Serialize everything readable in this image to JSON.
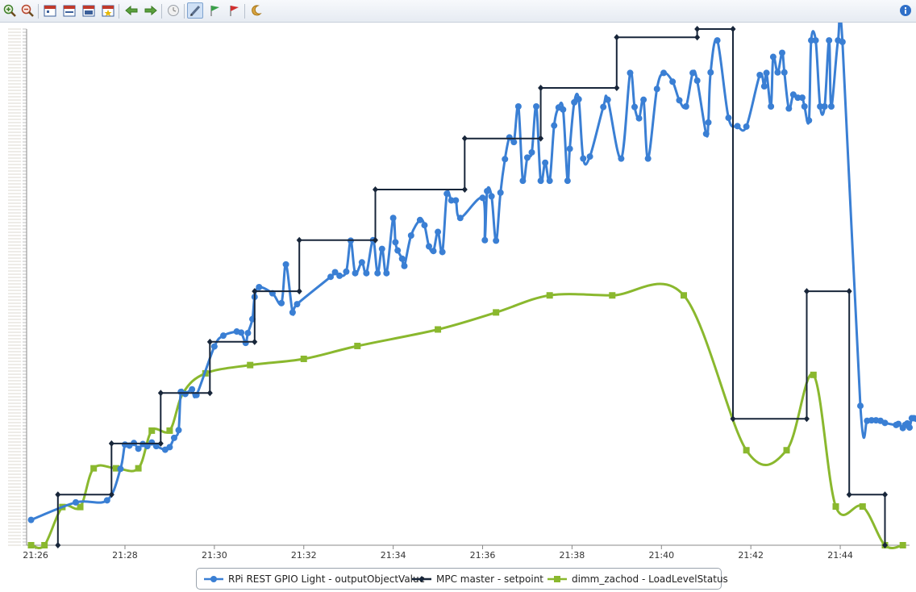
{
  "toolbar": {
    "icons": [
      "zoom-in-icon",
      "zoom-out-icon",
      "calendar-day-icon",
      "calendar-week-icon",
      "calendar-month-icon",
      "calendar-star-icon",
      "arrow-left-icon",
      "arrow-right-icon",
      "clock-icon",
      "edit-pen-icon",
      "flag-green-icon",
      "flag-red-icon",
      "moon-icon",
      "info-icon"
    ],
    "active": "edit-pen-icon"
  },
  "chart_data": {
    "type": "line",
    "title": "",
    "xlabel": "",
    "ylabel": "",
    "x_ticks": [
      "21:26",
      "21:28",
      "21:30",
      "21:32",
      "21:34",
      "21:36",
      "21:38",
      "21:40",
      "21:42",
      "21:44"
    ],
    "xlim": [
      25.8,
      45.55
    ],
    "ylim": [
      0,
      1
    ],
    "grid": false,
    "legend": "bottom",
    "x_unit": "minutes past 21:00",
    "series": [
      {
        "name": "RPi REST GPIO Light - outputObjectValue",
        "color": "#3a7fd4",
        "marker": "circle",
        "smooth": true,
        "points": [
          [
            25.9,
            0.049
          ],
          [
            26.9,
            0.083
          ],
          [
            27.6,
            0.087
          ],
          [
            27.9,
            0.148
          ],
          [
            28.0,
            0.195
          ],
          [
            28.1,
            0.193
          ],
          [
            28.2,
            0.198
          ],
          [
            28.3,
            0.187
          ],
          [
            28.4,
            0.196
          ],
          [
            28.5,
            0.192
          ],
          [
            28.6,
            0.199
          ],
          [
            28.7,
            0.192
          ],
          [
            28.9,
            0.185
          ],
          [
            29.0,
            0.19
          ],
          [
            29.1,
            0.208
          ],
          [
            29.2,
            0.223
          ],
          [
            29.25,
            0.297
          ],
          [
            29.35,
            0.293
          ],
          [
            29.5,
            0.302
          ],
          [
            29.6,
            0.291
          ],
          [
            30.0,
            0.385
          ],
          [
            30.2,
            0.406
          ],
          [
            30.5,
            0.414
          ],
          [
            30.6,
            0.412
          ],
          [
            30.7,
            0.392
          ],
          [
            30.75,
            0.411
          ],
          [
            30.85,
            0.438
          ],
          [
            30.9,
            0.481
          ],
          [
            31.0,
            0.5
          ],
          [
            31.3,
            0.488
          ],
          [
            31.5,
            0.469
          ],
          [
            31.6,
            0.544
          ],
          [
            31.75,
            0.451
          ],
          [
            31.85,
            0.467
          ],
          [
            32.6,
            0.52
          ],
          [
            32.7,
            0.529
          ],
          [
            32.8,
            0.522
          ],
          [
            32.95,
            0.53
          ],
          [
            33.05,
            0.59
          ],
          [
            33.15,
            0.527
          ],
          [
            33.3,
            0.548
          ],
          [
            33.4,
            0.527
          ],
          [
            33.55,
            0.591
          ],
          [
            33.65,
            0.527
          ],
          [
            33.75,
            0.574
          ],
          [
            33.85,
            0.527
          ],
          [
            34.0,
            0.634
          ],
          [
            34.05,
            0.587
          ],
          [
            34.1,
            0.571
          ],
          [
            34.2,
            0.555
          ],
          [
            34.25,
            0.541
          ],
          [
            34.4,
            0.6
          ],
          [
            34.6,
            0.63
          ],
          [
            34.7,
            0.62
          ],
          [
            34.8,
            0.579
          ],
          [
            34.9,
            0.57
          ],
          [
            35.0,
            0.607
          ],
          [
            35.1,
            0.568
          ],
          [
            35.2,
            0.681
          ],
          [
            35.3,
            0.668
          ],
          [
            35.4,
            0.668
          ],
          [
            35.5,
            0.634
          ],
          [
            36.0,
            0.673
          ],
          [
            36.05,
            0.591
          ],
          [
            36.1,
            0.686
          ],
          [
            36.2,
            0.676
          ],
          [
            36.3,
            0.59
          ],
          [
            36.4,
            0.683
          ],
          [
            36.5,
            0.748
          ],
          [
            36.6,
            0.79
          ],
          [
            36.7,
            0.781
          ],
          [
            36.8,
            0.85
          ],
          [
            36.9,
            0.706
          ],
          [
            37.0,
            0.751
          ],
          [
            37.1,
            0.761
          ],
          [
            37.2,
            0.85
          ],
          [
            37.3,
            0.706
          ],
          [
            37.4,
            0.741
          ],
          [
            37.5,
            0.706
          ],
          [
            37.6,
            0.813
          ],
          [
            37.7,
            0.848
          ],
          [
            37.8,
            0.844
          ],
          [
            37.9,
            0.706
          ],
          [
            37.95,
            0.768
          ],
          [
            38.05,
            0.858
          ],
          [
            38.15,
            0.864
          ],
          [
            38.25,
            0.749
          ],
          [
            38.4,
            0.753
          ],
          [
            38.7,
            0.849
          ],
          [
            38.8,
            0.863
          ],
          [
            39.1,
            0.749
          ],
          [
            39.3,
            0.915
          ],
          [
            39.4,
            0.849
          ],
          [
            39.5,
            0.827
          ],
          [
            39.6,
            0.863
          ],
          [
            39.7,
            0.749
          ],
          [
            39.9,
            0.884
          ],
          [
            40.05,
            0.915
          ],
          [
            40.25,
            0.898
          ],
          [
            40.4,
            0.862
          ],
          [
            40.55,
            0.85
          ],
          [
            40.7,
            0.915
          ],
          [
            40.8,
            0.9
          ],
          [
            41.0,
            0.797
          ],
          [
            41.05,
            0.819
          ],
          [
            41.1,
            0.916
          ],
          [
            41.25,
            0.978
          ],
          [
            41.5,
            0.828
          ],
          [
            41.7,
            0.812
          ],
          [
            41.9,
            0.811
          ],
          [
            42.2,
            0.911
          ],
          [
            42.3,
            0.889
          ],
          [
            42.35,
            0.915
          ],
          [
            42.45,
            0.85
          ],
          [
            42.5,
            0.946
          ],
          [
            42.6,
            0.916
          ],
          [
            42.7,
            0.954
          ],
          [
            42.75,
            0.916
          ],
          [
            42.85,
            0.846
          ],
          [
            42.95,
            0.873
          ],
          [
            43.05,
            0.867
          ],
          [
            43.15,
            0.867
          ],
          [
            43.2,
            0.85
          ],
          [
            43.3,
            0.823
          ],
          [
            43.35,
            0.978
          ],
          [
            43.45,
            0.978
          ],
          [
            43.55,
            0.85
          ],
          [
            43.65,
            0.85
          ],
          [
            43.75,
            0.978
          ],
          [
            43.8,
            0.85
          ],
          [
            43.95,
            0.978
          ],
          [
            44.05,
            0.975
          ],
          [
            44.45,
            0.27
          ],
          [
            44.6,
            0.241
          ],
          [
            44.7,
            0.242
          ],
          [
            44.8,
            0.242
          ],
          [
            44.9,
            0.241
          ],
          [
            45.0,
            0.237
          ],
          [
            45.25,
            0.233
          ],
          [
            45.3,
            0.235
          ],
          [
            45.4,
            0.227
          ],
          [
            45.45,
            0.233
          ],
          [
            45.5,
            0.236
          ],
          [
            45.55,
            0.228
          ],
          [
            45.6,
            0.246
          ],
          [
            45.65,
            0.246
          ],
          [
            45.7,
            0.245
          ],
          [
            45.75,
            0.244
          ],
          [
            45.8,
            0.24
          ],
          [
            45.9,
            0.237
          ],
          [
            45.95,
            0.25
          ],
          [
            46.0,
            0.253
          ],
          [
            46.05,
            0.254
          ],
          [
            46.1,
            0.252
          ],
          [
            46.15,
            0.253
          ]
        ]
      },
      {
        "name": "MPC master - setpoint",
        "color": "#18263a",
        "marker": "diamond",
        "step": true,
        "points": [
          [
            26.5,
            0.0
          ],
          [
            26.5,
            0.098
          ],
          [
            27.7,
            0.098
          ],
          [
            27.7,
            0.197
          ],
          [
            28.8,
            0.197
          ],
          [
            28.8,
            0.295
          ],
          [
            29.9,
            0.295
          ],
          [
            29.9,
            0.394
          ],
          [
            30.9,
            0.394
          ],
          [
            30.9,
            0.492
          ],
          [
            31.9,
            0.492
          ],
          [
            31.9,
            0.591
          ],
          [
            33.6,
            0.591
          ],
          [
            33.6,
            0.689
          ],
          [
            35.6,
            0.689
          ],
          [
            35.6,
            0.788
          ],
          [
            37.3,
            0.788
          ],
          [
            37.3,
            0.886
          ],
          [
            39.0,
            0.886
          ],
          [
            39.0,
            0.984
          ],
          [
            40.8,
            0.984
          ],
          [
            40.8,
            1.0
          ],
          [
            41.6,
            1.0
          ],
          [
            41.6,
            0.245
          ],
          [
            43.25,
            0.245
          ],
          [
            43.25,
            0.492
          ],
          [
            44.2,
            0.492
          ],
          [
            44.2,
            0.098
          ],
          [
            45.0,
            0.098
          ],
          [
            45.0,
            0.0
          ]
        ]
      },
      {
        "name": "dimm_zachod - LoadLevelStatus",
        "color": "#8ab82e",
        "marker": "square",
        "smooth": true,
        "points": [
          [
            25.9,
            0.0
          ],
          [
            26.2,
            0.0
          ],
          [
            26.6,
            0.074
          ],
          [
            27.0,
            0.074
          ],
          [
            27.3,
            0.149
          ],
          [
            27.8,
            0.149
          ],
          [
            28.3,
            0.149
          ],
          [
            28.6,
            0.222
          ],
          [
            29.0,
            0.222
          ],
          [
            29.3,
            0.295
          ],
          [
            29.8,
            0.333
          ],
          [
            30.8,
            0.349
          ],
          [
            32.0,
            0.361
          ],
          [
            33.2,
            0.386
          ],
          [
            35.0,
            0.418
          ],
          [
            36.3,
            0.451
          ],
          [
            37.5,
            0.484
          ],
          [
            38.9,
            0.484
          ],
          [
            40.5,
            0.484
          ],
          [
            41.9,
            0.184
          ],
          [
            42.8,
            0.184
          ],
          [
            43.4,
            0.33
          ],
          [
            43.9,
            0.075
          ],
          [
            44.5,
            0.075
          ],
          [
            45.0,
            0.0
          ],
          [
            45.4,
            0.0
          ]
        ]
      }
    ]
  },
  "legend": {
    "items": [
      {
        "label": "RPi REST GPIO Light - outputObjectValue",
        "color": "#3a7fd4",
        "marker": "circle"
      },
      {
        "label": "MPC master - setpoint",
        "color": "#18263a",
        "marker": "diamond"
      },
      {
        "label": "dimm_zachod - LoadLevelStatus",
        "color": "#8ab82e",
        "marker": "square"
      }
    ]
  }
}
